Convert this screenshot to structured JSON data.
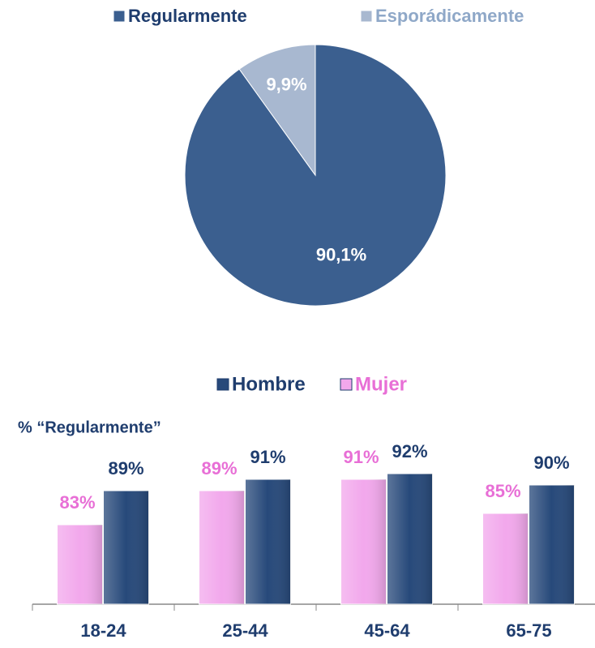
{
  "chart_data": [
    {
      "type": "pie",
      "categories": [
        "Regularmente",
        "Esporádicamente"
      ],
      "values": [
        90.1,
        9.9
      ],
      "value_labels": [
        "90,1%",
        "9,9%"
      ],
      "colors": [
        "#3b5f8f",
        "#a8b8d0"
      ],
      "legend_colors": [
        "#1f3d6e",
        "#8fa8c8"
      ]
    },
    {
      "type": "bar",
      "ylabel": "% “Regularmente”",
      "categories": [
        "18-24",
        "25-44",
        "45-64",
        "65-75"
      ],
      "series": [
        {
          "name": "Hombre",
          "color": "#27497a",
          "values": [
            89,
            91,
            92,
            90
          ],
          "value_labels": [
            "89%",
            "91%",
            "92%",
            "90%"
          ]
        },
        {
          "name": "Mujer",
          "color": "#f2a8ec",
          "values": [
            83,
            89,
            91,
            85
          ],
          "value_labels": [
            "83%",
            "89%",
            "91%",
            "85%"
          ]
        }
      ],
      "label_colors": [
        "#1f3d6e",
        "#e86fd6"
      ],
      "ylim": [
        69,
        100
      ]
    }
  ]
}
